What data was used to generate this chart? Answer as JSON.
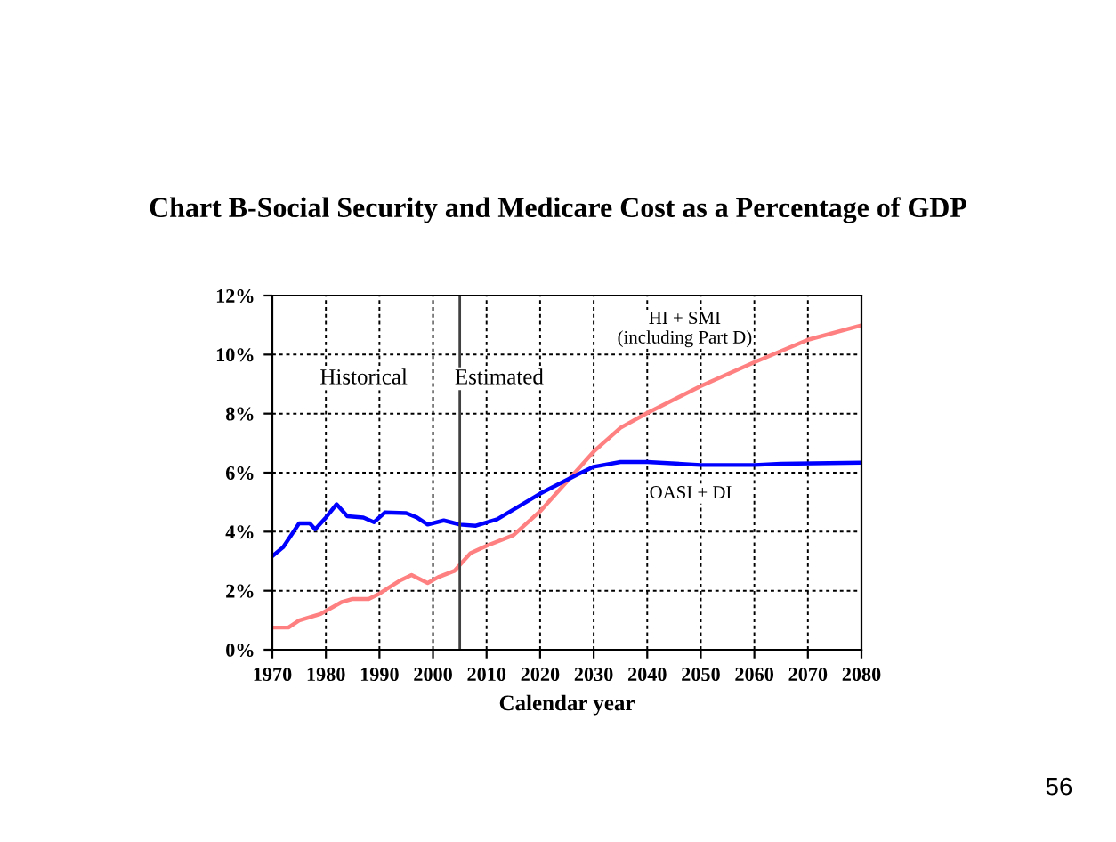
{
  "chart_data": {
    "type": "line",
    "title": "Chart B-Social Security and Medicare Cost as a Percentage of GDP",
    "xlabel": "Calendar year",
    "xlim": [
      1970,
      2080
    ],
    "xticks": [
      1970,
      1980,
      1990,
      2000,
      2010,
      2020,
      2030,
      2040,
      2050,
      2060,
      2070,
      2080
    ],
    "ylim": [
      0,
      12
    ],
    "yticks": [
      {
        "value": 0,
        "label": "0%"
      },
      {
        "value": 2,
        "label": "2%"
      },
      {
        "value": 4,
        "label": "4%"
      },
      {
        "value": 6,
        "label": "6%"
      },
      {
        "value": 8,
        "label": "8%"
      },
      {
        "value": 10,
        "label": "10%"
      },
      {
        "value": 12,
        "label": "12%"
      }
    ],
    "grid": true,
    "legend": false,
    "marker": "none",
    "line_style": "solid",
    "series": [
      {
        "color": "#ff8080",
        "x": [
          1970,
          1973,
          1975,
          1979,
          1983,
          1985,
          1988,
          1990,
          1994,
          1996,
          1999,
          2001,
          2004,
          2005,
          2007,
          2010,
          2015,
          2020,
          2025,
          2030,
          2035,
          2040,
          2050,
          2060,
          2070,
          2080
        ],
        "values": [
          0.75,
          0.75,
          0.99,
          1.21,
          1.62,
          1.72,
          1.72,
          1.9,
          2.36,
          2.53,
          2.26,
          2.46,
          2.67,
          2.87,
          3.27,
          3.52,
          3.88,
          4.69,
          5.7,
          6.71,
          7.52,
          8.02,
          8.93,
          9.74,
          10.5,
          10.99
        ]
      },
      {
        "color": "#0000ff",
        "x": [
          1970,
          1972,
          1975,
          1977,
          1978,
          1980,
          1982,
          1984,
          1987,
          1989,
          1991,
          1995,
          1997,
          1999,
          2002,
          2005,
          2008,
          2012,
          2020,
          2027,
          2030,
          2035,
          2040,
          2050,
          2060,
          2065,
          2080
        ],
        "values": [
          3.17,
          3.47,
          4.28,
          4.28,
          4.08,
          4.48,
          4.93,
          4.52,
          4.48,
          4.32,
          4.65,
          4.63,
          4.48,
          4.24,
          4.38,
          4.24,
          4.2,
          4.42,
          5.29,
          5.94,
          6.2,
          6.36,
          6.36,
          6.26,
          6.26,
          6.3,
          6.34
        ]
      }
    ],
    "ref_lines": [
      {
        "axis": "x",
        "value": 2005,
        "color": "#404040",
        "line_style": "solid"
      }
    ],
    "annotations": [
      "Historical",
      "Estimated",
      "HI + SMI\n(including Part D)",
      "OASI + DI",
      "56"
    ]
  }
}
